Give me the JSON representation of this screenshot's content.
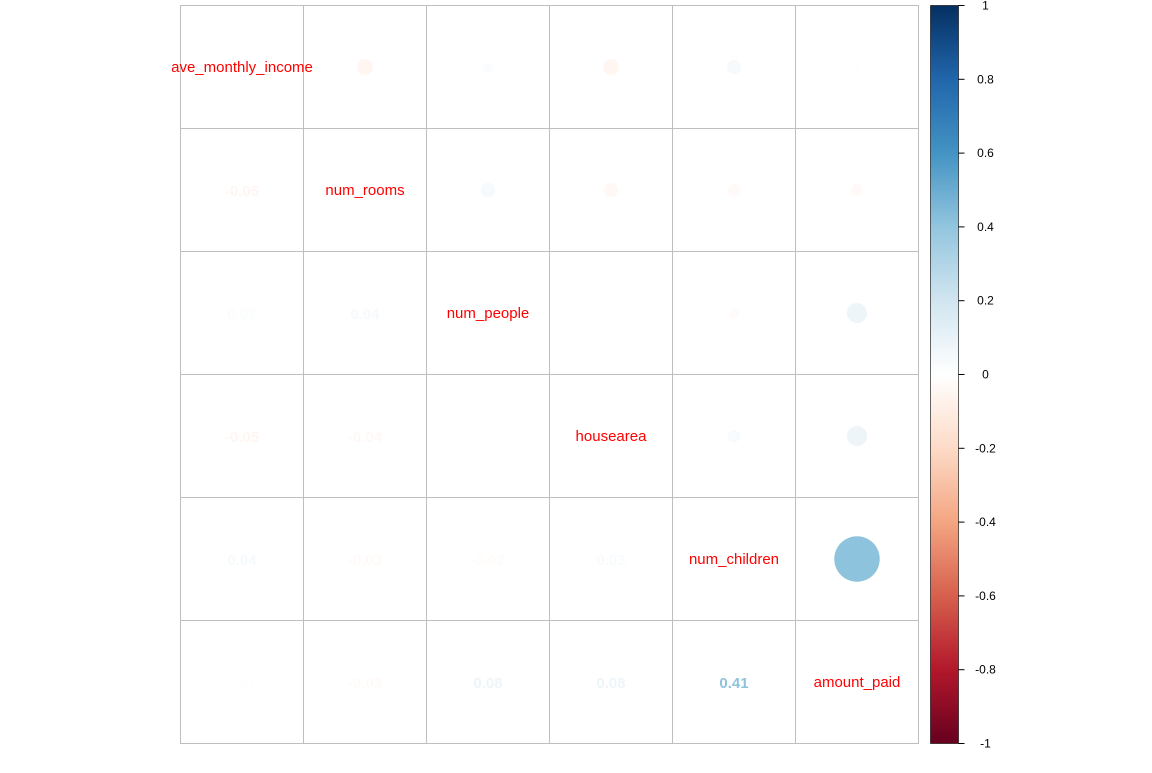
{
  "chart_data": {
    "type": "heatmap",
    "variables": [
      "ave_monthly_income",
      "num_rooms",
      "num_people",
      "housearea",
      "num_children",
      "amount_paid"
    ],
    "matrix": [
      [
        1.0,
        -0.05,
        0.02,
        -0.05,
        0.04,
        0.01
      ],
      [
        -0.05,
        1.0,
        0.04,
        -0.04,
        -0.03,
        -0.03
      ],
      [
        0.02,
        0.04,
        1.0,
        0.0,
        -0.02,
        0.08
      ],
      [
        -0.05,
        -0.04,
        0.0,
        1.0,
        0.03,
        0.08
      ],
      [
        0.04,
        -0.03,
        -0.02,
        0.03,
        1.0,
        0.41
      ],
      [
        0.01,
        -0.03,
        0.08,
        0.08,
        0.41,
        1.0
      ]
    ],
    "upper_method": "circle",
    "lower_method": "number",
    "lower_labels": [
      [
        "",
        "",
        "",
        "",
        "",
        ""
      ],
      [
        "-0.05",
        "",
        "",
        "",
        "",
        ""
      ],
      [
        "0.02",
        "0.04",
        "",
        "",
        "",
        ""
      ],
      [
        "-0.05",
        "-0.04",
        "0",
        "",
        "",
        ""
      ],
      [
        "0.04",
        "-0.03",
        "-0.02",
        "0.03",
        "",
        ""
      ],
      [
        "0.01",
        "-0.03",
        "0.08",
        "0.08",
        "0.41",
        ""
      ]
    ],
    "diagonal": "variable names",
    "color_scale": {
      "domain": [
        -1,
        1
      ],
      "ticks": [
        "1",
        "0.8",
        "0.6",
        "0.4",
        "0.2",
        "0",
        "-0.2",
        "-0.4",
        "-0.6",
        "-0.8",
        "-1"
      ],
      "stops": [
        {
          "value": -1.0,
          "color": "#67001F"
        },
        {
          "value": -0.8,
          "color": "#B2182B"
        },
        {
          "value": -0.6,
          "color": "#D6604D"
        },
        {
          "value": -0.4,
          "color": "#F4A582"
        },
        {
          "value": -0.2,
          "color": "#FDDBC7"
        },
        {
          "value": 0.0,
          "color": "#FFFFFF"
        },
        {
          "value": 0.2,
          "color": "#D1E5F0"
        },
        {
          "value": 0.4,
          "color": "#92C5DE"
        },
        {
          "value": 0.6,
          "color": "#4393C3"
        },
        {
          "value": 0.8,
          "color": "#2166AC"
        },
        {
          "value": 1.0,
          "color": "#053061"
        }
      ]
    },
    "label_color": "#FF0000",
    "grid": true,
    "legend_position": "right"
  }
}
